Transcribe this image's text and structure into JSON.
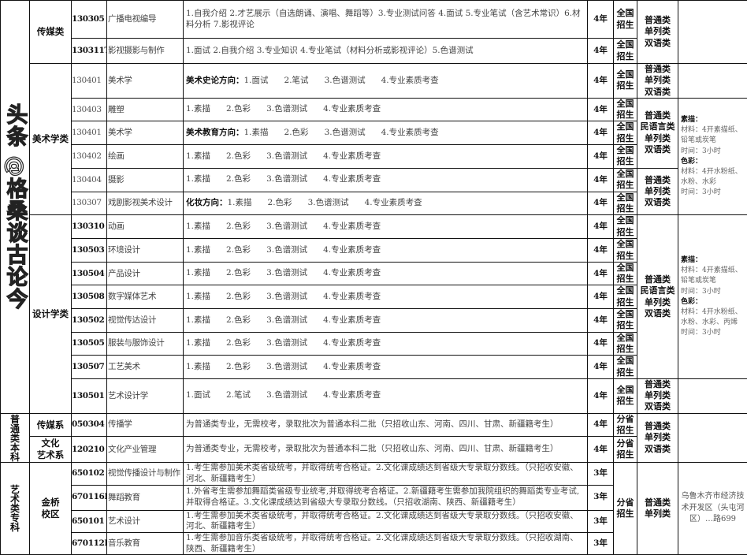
{
  "level_groups": [
    {
      "text": "",
      "span": 16
    },
    {
      "text": "普\n通\n类\n本\n科",
      "span": 2
    },
    {
      "text": "艺\n术\n类\n专\n科",
      "span": 4
    }
  ],
  "dept_groups": [
    {
      "text": "传媒类",
      "span": 2
    },
    {
      "text": "美术学类",
      "span": 6
    },
    {
      "text": "设计学类",
      "span": 8
    },
    {
      "text": "传媒系",
      "span": 1
    },
    {
      "text": "文化\n艺术系",
      "span": 1
    },
    {
      "text": "金桥\n校区",
      "span": 4
    }
  ],
  "rows": [
    {
      "code": "130305",
      "name": "广播电视编导",
      "prefix": "",
      "exam": "1.自我介绍 2.才艺展示（自选朗诵、演唱、舞蹈等）3.专业测试问答 4.面试 5.专业笔试（含艺术常识）6.材料分析 7.影视评论",
      "years": "4年",
      "scope": "全国\n招生"
    },
    {
      "code": "130311T",
      "name": "影视摄影与制作",
      "prefix": "",
      "exam": "1.面试 2.自我介绍 3.专业知识 4.专业笔试（材料分析或影视评论）5.色谱测试",
      "years": "4年",
      "scope": "全国\n招生"
    },
    {
      "code": "130401",
      "light": true,
      "name": "美术学",
      "prefix": "美术史论方向：",
      "exam": "1.面试      2.笔试      3.色谱测试      4.专业素质考查",
      "years": "4年",
      "scope": "全国\n招生"
    },
    {
      "code": "130403",
      "light": true,
      "name": "雕塑",
      "prefix": "",
      "exam": "1.素描      2.色彩      3.色谱测试      4.专业素质考查",
      "years": "4年",
      "scope": "全国\n招生"
    },
    {
      "code": "130401",
      "light": true,
      "name": "美术学",
      "prefix": "美术教育方向：",
      "exam": "1.素描      2.色彩      3.色谱测试      4.专业素质考查",
      "years": "4年",
      "scope": "全国\n招生"
    },
    {
      "code": "130402",
      "light": true,
      "name": "绘画",
      "prefix": "",
      "exam": "1.素描      2.色彩      3.色谱测试      4.专业素质考查",
      "years": "4年",
      "scope": "全国\n招生"
    },
    {
      "code": "130404",
      "light": true,
      "name": "摄影",
      "prefix": "",
      "exam": "1.素描      2.色彩      3.色谱测试      4.专业素质考查",
      "years": "4年",
      "scope": "全国\n招生"
    },
    {
      "code": "130307",
      "light": true,
      "name": "戏剧影视美术设计",
      "prefix": "化妆方向：",
      "exam": "1.素描      2.色彩      3.色谱测试      4.专业素质考查",
      "years": "4年",
      "scope": "全国\n招生"
    },
    {
      "code": "130310",
      "name": "动画",
      "prefix": "",
      "exam": "1.素描      2.色彩      3.色谱测试      4.专业素质考查",
      "years": "4年",
      "scope": "全国\n招生"
    },
    {
      "code": "130503",
      "name": "环境设计",
      "prefix": "",
      "exam": "1.素描      2.色彩      3.色谱测试      4.专业素质考查",
      "years": "4年",
      "scope": "全国\n招生"
    },
    {
      "code": "130504",
      "name": "产品设计",
      "prefix": "",
      "exam": "1.素描      2.色彩      3.色谱测试      4.专业素质考查",
      "years": "4年",
      "scope": "全国\n招生"
    },
    {
      "code": "130508",
      "name": "数字媒体艺术",
      "prefix": "",
      "exam": "1.素描      2.色彩      3.色谱测试      4.专业素质考查",
      "years": "4年",
      "scope": "全国\n招生"
    },
    {
      "code": "130502",
      "name": "视觉传达设计",
      "prefix": "",
      "exam": "1.素描      2.色彩      3.色谱测试      4.专业素质考查",
      "years": "4年",
      "scope": "全国\n招生"
    },
    {
      "code": "130505",
      "name": "服装与服饰设计",
      "prefix": "",
      "exam": "1.素描      2.色彩      3.色谱测试      4.专业素质考查",
      "years": "4年",
      "scope": "全国\n招生"
    },
    {
      "code": "130507",
      "name": "工艺美术",
      "prefix": "",
      "exam": "1.素描      2.色彩      3.色谱测试      4.专业素质考查",
      "years": "4年",
      "scope": "全国\n招生"
    },
    {
      "code": "130501",
      "name": "艺术设计学",
      "prefix": "",
      "exam": "1.面试      2.笔试      3.色谱测试      4.专业素质考查",
      "years": "4年",
      "scope": "全国\n招生"
    },
    {
      "code": "050304",
      "name": "传播学",
      "prefix": "",
      "exam": "为普通类专业，无需校考，录取批次为普通本科二批（只招收山东、河南、四川、甘肃、新疆籍考生）",
      "years": "4年",
      "scope": "分省\n招生"
    },
    {
      "code": "120210",
      "name": "文化产业管理",
      "prefix": "",
      "exam": "为普通类专业，无需校考，录取批次为普通本科二批（只招收山东、河南、四川、甘肃、新疆籍考生）",
      "years": "4年",
      "scope": "分省\n招生"
    },
    {
      "code": "650102",
      "name": "视觉传播设计与制作",
      "prefix": "",
      "exam": "1.考生需参加美术类省级统考，并取得统考合格证。2.文化课成绩达到省级大专录取分数线。（只招收安徽、河北、新疆籍考生）",
      "years": "3年"
    },
    {
      "code": "670116K",
      "name": "舞蹈教育",
      "prefix": "",
      "exam": "1.外省考生需参加舞蹈类省级专业统考,并取得统考合格证。2.新疆籍考生需参加我院组织的舞蹈类专业考试,并取得合格证。3.文化课成绩达到省级大专录取分数线。（只招收湖南、陕西、新疆籍考生）",
      "years": "3年"
    },
    {
      "code": "650101",
      "name": "艺术设计",
      "prefix": "",
      "exam": "1.考生需参加美术类省级统考，并取得统考合格证。2.文化课成绩达到省级大专录取分数线。（只招收安徽、河北、新疆籍考生）",
      "years": "3年"
    },
    {
      "code": "670112K",
      "name": "音乐教育",
      "prefix": "",
      "exam": "1.考生需参加音乐类省级统考，并取得统考合格证。2.文化课成绩达到省级大专录取分数线。（只招收湖南、陕西、新疆籍考生）",
      "years": "3年"
    }
  ],
  "scope_tail": {
    "text": "分省\n招生",
    "span": 4
  },
  "type_groups": [
    {
      "text": "普通类\n单列类\n双语类",
      "span": 2
    },
    {
      "text": "普通类\n单列类\n双语类",
      "span": 1
    },
    {
      "text": "普通类\n民语言类\n单列类\n双语类",
      "span": 3
    },
    {
      "text": "普通类\n单列类\n双语类",
      "span": 2
    },
    {
      "text": "普通类\n民语言类\n单列类\n双语类",
      "span": 7
    },
    {
      "text": "普通类\n单列类\n双语类",
      "span": 1
    },
    {
      "text": "普通类\n单列类\n双语类",
      "span": 2
    },
    {
      "text": "普通类\n单列类",
      "span": 4
    }
  ],
  "note_groups": [
    {
      "span": 2,
      "lines": []
    },
    {
      "span": 1,
      "lines": []
    },
    {
      "span": 5,
      "lines": [
        {
          "b": "素描："
        },
        {
          "t": "材料：4开素描纸、铅笔或炭笔"
        },
        {
          "t": "时间：3小时"
        },
        {
          "b": "色彩："
        },
        {
          "t": "材料：4开水粉纸、水粉、水彩"
        },
        {
          "t": "时间：3小时"
        }
      ]
    },
    {
      "span": 7,
      "lines": [
        {
          "b": "素描："
        },
        {
          "t": "材料：4开素描纸、铅笔或炭笔"
        },
        {
          "t": "时间：3小时"
        },
        {
          "b": "色彩："
        },
        {
          "t": "材料：4开水粉纸、水粉、水彩、丙烯"
        },
        {
          "t": "时间：3小时"
        }
      ]
    },
    {
      "span": 1,
      "lines": []
    },
    {
      "span": 2,
      "lines": []
    },
    {
      "span": 4,
      "addr": "乌鲁木齐市经济技术开发区（头屯河区）…路699"
    }
  ],
  "watermark": "头条 @格桑谈古论今"
}
